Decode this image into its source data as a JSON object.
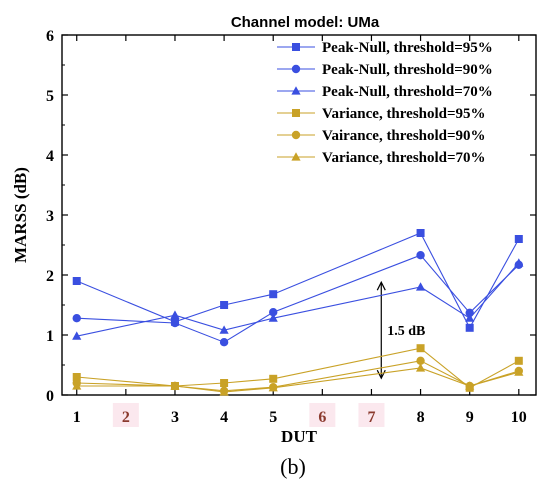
{
  "chart_data": {
    "type": "line",
    "title": "Channel model: UMa",
    "xlabel": "DUT",
    "ylabel": "MARSS (dB)",
    "panel_label": "(b)",
    "xlim": [
      0.7,
      10.35
    ],
    "ylim": [
      0,
      6
    ],
    "x_ticks": [
      1,
      2,
      3,
      4,
      5,
      6,
      7,
      8,
      9,
      10
    ],
    "highlighted_ticks": [
      2,
      6,
      7
    ],
    "highlight_color": "#8b3a2e",
    "y_ticks": [
      0,
      1,
      2,
      3,
      4,
      5,
      6
    ],
    "grid": false,
    "legend_position": "top-right",
    "x": [
      1,
      3,
      4,
      5,
      8,
      9,
      10
    ],
    "series": [
      {
        "name": "Peak-Null, threshold=95%",
        "marker": "square",
        "color": "#3a4fe0",
        "values": [
          1.9,
          1.22,
          1.5,
          1.68,
          2.7,
          1.12,
          2.6
        ]
      },
      {
        "name": "Peak-Null, threshold=90%",
        "marker": "circle",
        "color": "#3a4fe0",
        "values": [
          1.28,
          1.2,
          0.88,
          1.38,
          2.33,
          1.37,
          2.17
        ]
      },
      {
        "name": "Peak-Null, threshold=70%",
        "marker": "triangle",
        "color": "#3a4fe0",
        "values": [
          0.98,
          1.33,
          1.08,
          1.28,
          1.8,
          1.28,
          2.2
        ]
      },
      {
        "name": "Variance, threshold=95%",
        "marker": "square",
        "color": "#c9a227",
        "values": [
          0.3,
          0.15,
          0.2,
          0.27,
          0.78,
          0.12,
          0.57
        ]
      },
      {
        "name": "Vairance, threshold=90%",
        "marker": "circle",
        "color": "#c9a227",
        "values": [
          0.2,
          0.15,
          0.07,
          0.13,
          0.57,
          0.15,
          0.4
        ]
      },
      {
        "name": "Variance, threshold=70%",
        "marker": "triangle",
        "color": "#c9a227",
        "values": [
          0.15,
          0.15,
          0.05,
          0.12,
          0.45,
          0.15,
          0.38
        ]
      }
    ],
    "annotation": {
      "text": "1.5 dB",
      "x": 7.2,
      "y_from": 0.28,
      "y_to": 1.88
    }
  }
}
